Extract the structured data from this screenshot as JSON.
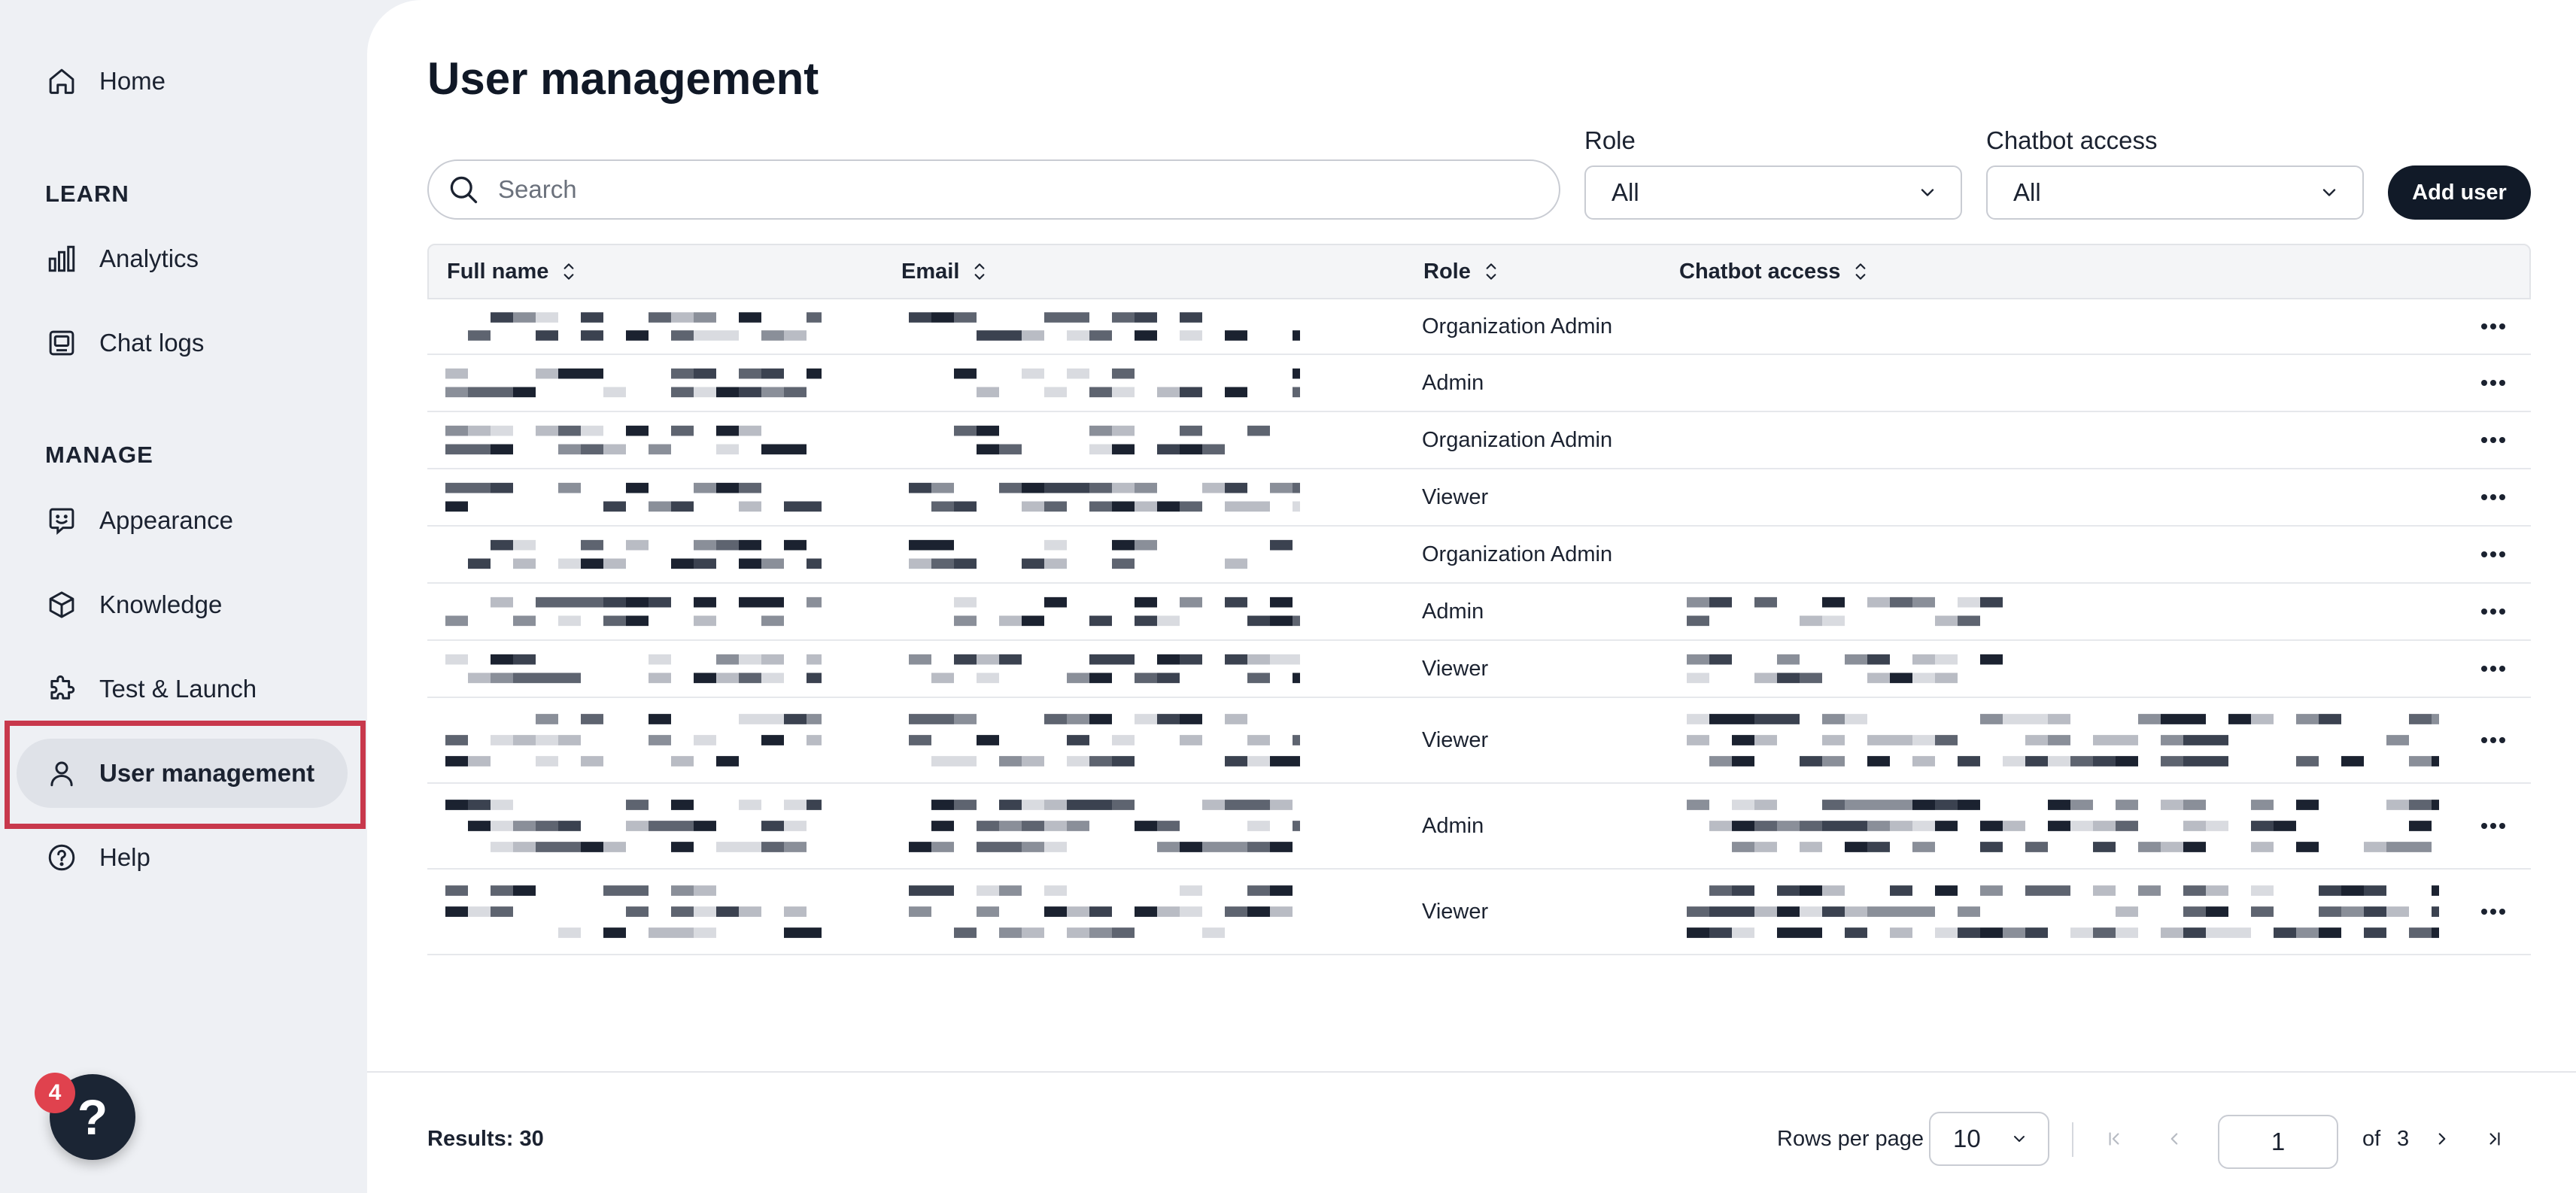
{
  "sidebar": {
    "home": "Home",
    "learn_title": "LEARN",
    "analytics": "Analytics",
    "chat_logs": "Chat logs",
    "manage_title": "MANAGE",
    "appearance": "Appearance",
    "knowledge": "Knowledge",
    "test_launch": "Test & Launch",
    "user_management": "User management",
    "help": "Help",
    "help_badge_count": "4"
  },
  "main": {
    "title": "User management",
    "search_placeholder": "Search",
    "role_filter": {
      "label": "Role",
      "value": "All"
    },
    "chatbot_filter": {
      "label": "Chatbot access",
      "value": "All"
    },
    "add_user_label": "Add user"
  },
  "table": {
    "columns": {
      "full_name": "Full name",
      "email": "Email",
      "role": "Role",
      "chatbot_access": "Chatbot access"
    },
    "rows": [
      {
        "role": "Organization Admin"
      },
      {
        "role": "Admin"
      },
      {
        "role": "Organization Admin"
      },
      {
        "role": "Viewer"
      },
      {
        "role": "Organization Admin"
      },
      {
        "role": "Admin"
      },
      {
        "role": "Viewer"
      },
      {
        "role": "Viewer"
      },
      {
        "role": "Admin"
      },
      {
        "role": "Viewer"
      }
    ]
  },
  "footer": {
    "results_label": "Results: 30",
    "rows_per_page_label": "Rows per page",
    "rows_per_page_value": "10",
    "current_page": "1",
    "of_label": "of",
    "total_pages": "3"
  },
  "colors": {
    "primary_button": "#111a28",
    "highlight_border": "#c8384c",
    "badge": "#e0424e"
  }
}
